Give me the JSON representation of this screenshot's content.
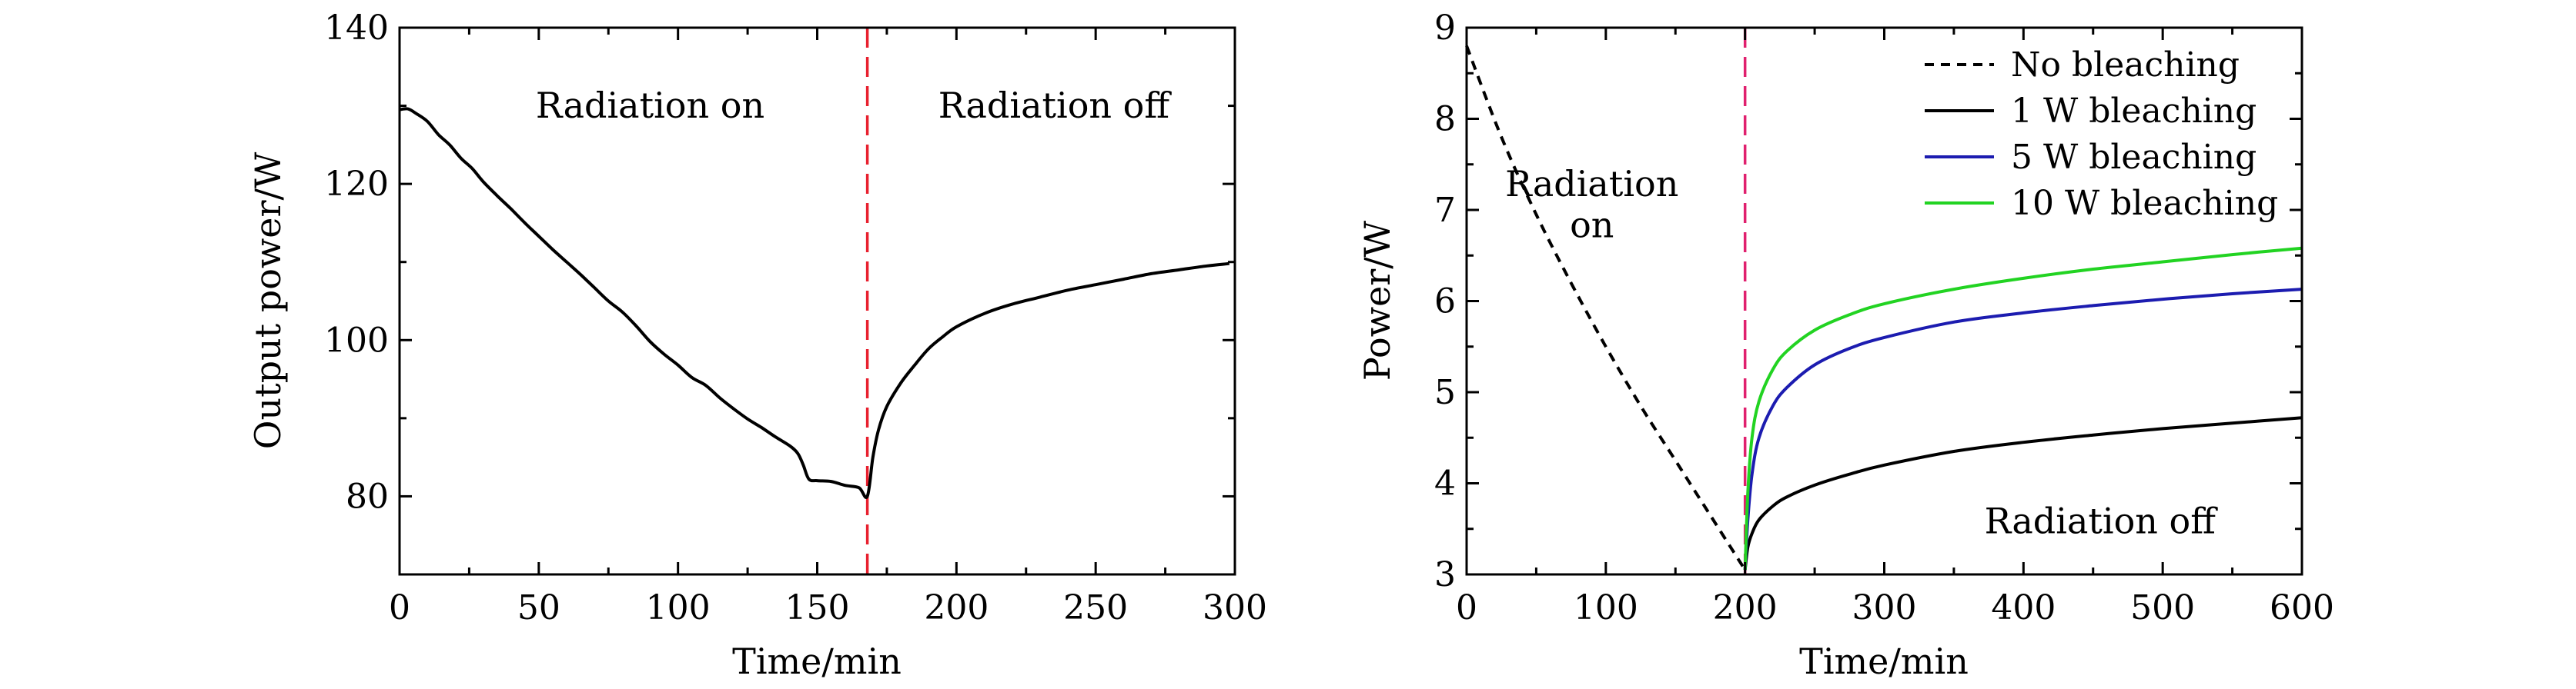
{
  "chart_data": [
    {
      "type": "line",
      "xlabel": "Time/min",
      "ylabel": "Output power/W",
      "xlim": [
        0,
        300
      ],
      "ylim": [
        70,
        140
      ],
      "xticks": [
        0,
        50,
        100,
        150,
        200,
        250,
        300
      ],
      "yticks": [
        80,
        100,
        120,
        140
      ],
      "grid": false,
      "annotations": [
        {
          "text": "Radiation on",
          "x": 90,
          "y": 128.5
        },
        {
          "text": "Radiation off",
          "x": 235,
          "y": 128.5
        }
      ],
      "marker_line": {
        "x": 168,
        "color": "#e8202e",
        "style": "dashed"
      },
      "series": [
        {
          "color": "#000000",
          "x": [
            0,
            3,
            6,
            10,
            14,
            18,
            22,
            26,
            30,
            35,
            40,
            45,
            50,
            55,
            60,
            65,
            70,
            75,
            80,
            85,
            90,
            95,
            100,
            105,
            110,
            115,
            120,
            125,
            130,
            135,
            140,
            143,
            145,
            147,
            150,
            155,
            160,
            165,
            168,
            170,
            172,
            175,
            180,
            185,
            190,
            195,
            200,
            210,
            220,
            230,
            240,
            250,
            260,
            270,
            280,
            290,
            298
          ],
          "y": [
            129.5,
            129.6,
            129.0,
            128.0,
            126.3,
            125.0,
            123.3,
            122.0,
            120.3,
            118.5,
            116.8,
            115.0,
            113.3,
            111.6,
            110.0,
            108.4,
            106.7,
            105.0,
            103.6,
            101.8,
            99.8,
            98.2,
            96.8,
            95.2,
            94.2,
            92.6,
            91.2,
            89.9,
            88.8,
            87.6,
            86.5,
            85.5,
            84.0,
            82.2,
            82.0,
            81.9,
            81.4,
            81.1,
            80.0,
            85.0,
            88.5,
            91.5,
            94.5,
            96.8,
            98.9,
            100.4,
            101.7,
            103.4,
            104.6,
            105.5,
            106.4,
            107.1,
            107.8,
            108.5,
            109.0,
            109.5,
            109.8
          ]
        }
      ]
    },
    {
      "type": "line",
      "xlabel": "Time/min",
      "ylabel": "Power/W",
      "xlim": [
        0,
        600
      ],
      "ylim": [
        3,
        9
      ],
      "xticks": [
        0,
        100,
        200,
        300,
        400,
        500,
        600
      ],
      "yticks": [
        3,
        4,
        5,
        6,
        7,
        8,
        9
      ],
      "grid": false,
      "legend": "top-right",
      "annotations": [
        {
          "text": "Radiation",
          "x": 90,
          "y": 7.15
        },
        {
          "text": "on",
          "x": 90,
          "y": 6.7
        },
        {
          "text": "Radiation off",
          "x": 455,
          "y": 3.45
        }
      ],
      "marker_line": {
        "x": 200,
        "color": "#e0206e",
        "style": "dashed"
      },
      "series": [
        {
          "name": "No bleaching",
          "color": "#000000",
          "style": "dashed",
          "x": [
            0,
            25,
            50,
            75,
            100,
            125,
            150,
            175,
            200
          ],
          "y": [
            8.8,
            7.8,
            6.95,
            6.2,
            5.5,
            4.85,
            4.25,
            3.65,
            3.05
          ]
        },
        {
          "name": "1 W bleaching",
          "color": "#000000",
          "style": "solid",
          "x": [
            200,
            202,
            205,
            210,
            220,
            230,
            250,
            275,
            300,
            350,
            400,
            450,
            500,
            550,
            600
          ],
          "y": [
            3.05,
            3.3,
            3.45,
            3.6,
            3.75,
            3.85,
            3.98,
            4.1,
            4.2,
            4.35,
            4.45,
            4.53,
            4.6,
            4.66,
            4.72
          ]
        },
        {
          "name": "5 W bleaching",
          "color": "#1c1cb0",
          "style": "solid",
          "x": [
            200,
            202,
            205,
            210,
            220,
            230,
            250,
            275,
            300,
            350,
            400,
            450,
            500,
            550,
            600
          ],
          "y": [
            3.05,
            3.6,
            4.1,
            4.5,
            4.85,
            5.05,
            5.3,
            5.48,
            5.6,
            5.77,
            5.87,
            5.95,
            6.02,
            6.08,
            6.13
          ]
        },
        {
          "name": "10 W bleaching",
          "color": "#22d322",
          "style": "solid",
          "x": [
            200,
            202,
            205,
            210,
            220,
            230,
            250,
            275,
            300,
            350,
            400,
            450,
            500,
            550,
            600
          ],
          "y": [
            3.05,
            3.9,
            4.5,
            4.9,
            5.25,
            5.45,
            5.68,
            5.85,
            5.97,
            6.13,
            6.25,
            6.35,
            6.43,
            6.51,
            6.58
          ]
        }
      ]
    }
  ]
}
